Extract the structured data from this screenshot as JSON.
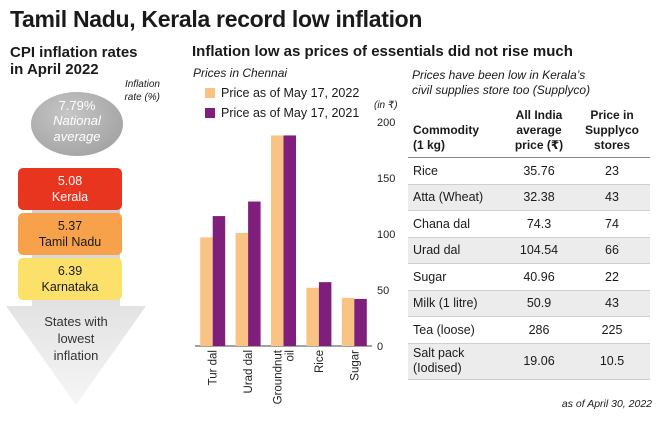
{
  "title": "Tamil Nadu, Kerala record low inflation",
  "left": {
    "heading_line1": "CPI inflation rates",
    "heading_line2": "in April 2022",
    "rate_label_line1": "Inflation",
    "rate_label_line2": "rate (%)",
    "national": {
      "value": "7.79%",
      "label_line1": "National",
      "label_line2": "average"
    },
    "states": [
      {
        "value": "5.08",
        "name": "Kerala",
        "color": "#e8351f",
        "text_color": "#ffffff"
      },
      {
        "value": "5.37",
        "name": "Tamil Nadu",
        "color": "#f7a24a",
        "text_color": "#1a1a1a"
      },
      {
        "value": "6.39",
        "name": "Karnataka",
        "color": "#fbe16a",
        "text_color": "#1a1a1a"
      }
    ],
    "arrow_text_line1": "States with",
    "arrow_text_line2": "lowest",
    "arrow_text_line3": "inflation"
  },
  "chart_data": {
    "type": "bar",
    "title": "Inflation low as prices of essentials did not rise much",
    "subtitle": "Prices  in Chennai",
    "unit": "(in ₹)",
    "categories": [
      "Tur dal",
      "Urad dal",
      "Groundnut oil",
      "Rice",
      "Sugar"
    ],
    "category_lines": [
      [
        "Tur dal"
      ],
      [
        "Urad dal"
      ],
      [
        "Groundnut",
        "oil"
      ],
      [
        "Rice"
      ],
      [
        "Sugar"
      ]
    ],
    "series": [
      {
        "name": "Price as of May 17, 2022",
        "color": "#f9c384",
        "values": [
          97,
          101,
          188,
          52,
          43
        ]
      },
      {
        "name": "Price as of May 17, 2021",
        "color": "#7f1f7b",
        "values": [
          116,
          129,
          188,
          57,
          42
        ]
      }
    ],
    "ylim": [
      0,
      200
    ],
    "yticks": [
      0,
      50,
      100,
      150,
      200
    ],
    "grid": false,
    "legend_position": "top-left"
  },
  "table": {
    "subtitle_line1": "Prices have been low in Kerala’s",
    "subtitle_line2": "civil supplies store too (Supplyco)",
    "headers": [
      [
        "Commodity",
        "(1 kg)"
      ],
      [
        "All India",
        "average",
        "price (₹)"
      ],
      [
        "Price in",
        "Supplyco stores"
      ]
    ],
    "rows": [
      [
        "Rice",
        "35.76",
        "23"
      ],
      [
        "Atta (Wheat)",
        "32.38",
        "43"
      ],
      [
        "Chana dal",
        "74.3",
        "74"
      ],
      [
        "Urad dal",
        "104.54",
        "66"
      ],
      [
        "Sugar",
        "40.96",
        "22"
      ],
      [
        "Milk (1 litre)",
        "50.9",
        "43"
      ],
      [
        "Tea (loose)",
        "286",
        "225"
      ],
      [
        "Salt pack (Iodised)",
        "19.06",
        "10.5"
      ]
    ],
    "last_row_name_line1": "Salt pack",
    "last_row_name_line2": "(Iodised)",
    "as_of": "as of April 30, 2022"
  }
}
